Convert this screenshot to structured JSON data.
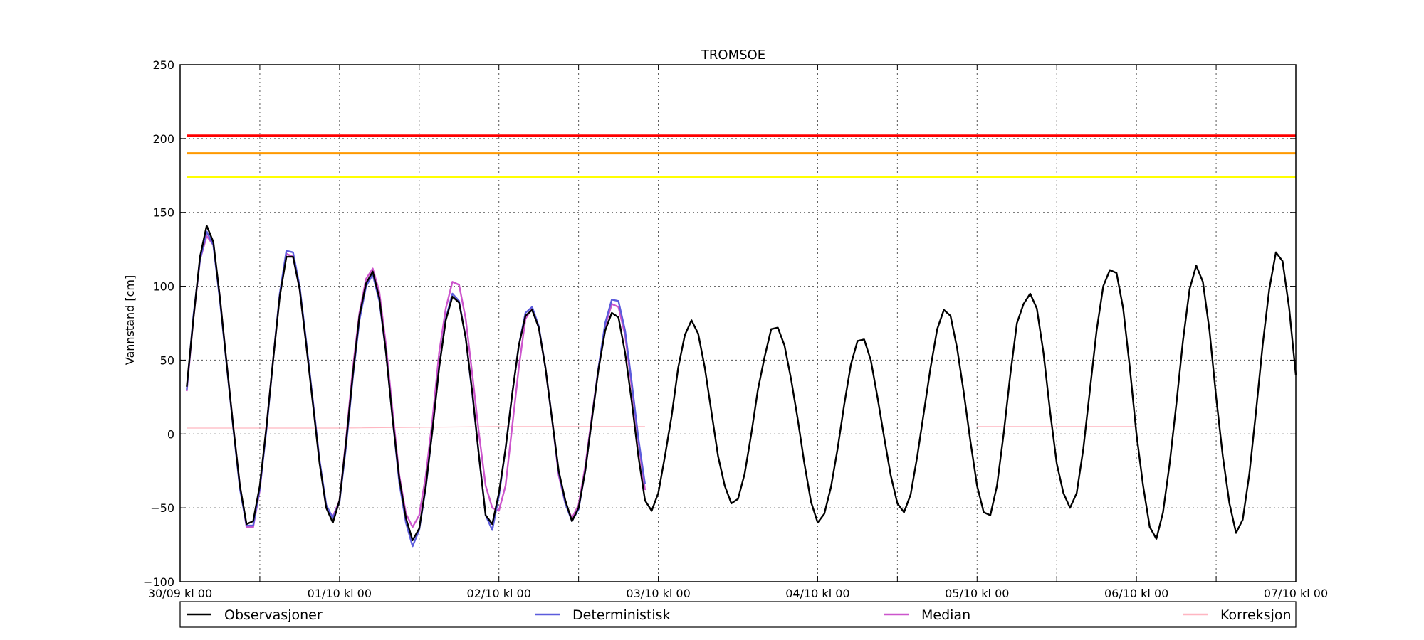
{
  "chart_data": {
    "type": "line",
    "title": "TROMSOE",
    "xlabel": "",
    "ylabel": "Vannstand [cm]",
    "ylim": [
      -100,
      250
    ],
    "yticks": [
      -100,
      -50,
      0,
      50,
      100,
      150,
      200,
      250
    ],
    "ytick_labels": [
      "−100",
      "−50",
      "0",
      "50",
      "100",
      "150",
      "200",
      "250"
    ],
    "xlim_hours": [
      0,
      168
    ],
    "xticks_hours": [
      0,
      24,
      48,
      72,
      96,
      120,
      144,
      168
    ],
    "xtick_labels": [
      "30/09 kl 00",
      "01/10 kl 00",
      "02/10 kl 00",
      "03/10 kl 00",
      "04/10 kl 00",
      "05/10 kl 00",
      "06/10 kl 00",
      "07/10 kl 00"
    ],
    "minor_xticks_hours": [
      12,
      36,
      60,
      84,
      108,
      132,
      156
    ],
    "grid": true,
    "legend_placement": "below",
    "thresholds": [
      {
        "value": 202,
        "color": "#ff0000"
      },
      {
        "value": 190,
        "color": "#ff9900"
      },
      {
        "value": 174,
        "color": "#ffff00"
      }
    ],
    "series": [
      {
        "name": "Observasjoner",
        "color": "#000000",
        "points": [
          [
            1,
            32
          ],
          [
            2,
            78
          ],
          [
            3,
            120
          ],
          [
            4,
            141
          ],
          [
            5,
            130
          ],
          [
            6,
            92
          ],
          [
            7,
            48
          ],
          [
            8,
            5
          ],
          [
            9,
            -35
          ],
          [
            10,
            -61
          ],
          [
            11,
            -59
          ],
          [
            12,
            -35
          ],
          [
            13,
            5
          ],
          [
            14,
            50
          ],
          [
            15,
            93
          ],
          [
            16,
            120
          ],
          [
            17,
            120
          ],
          [
            18,
            98
          ],
          [
            19,
            60
          ],
          [
            20,
            20
          ],
          [
            21,
            -20
          ],
          [
            22,
            -50
          ],
          [
            23,
            -60
          ],
          [
            24,
            -45
          ],
          [
            25,
            -5
          ],
          [
            26,
            40
          ],
          [
            27,
            80
          ],
          [
            28,
            102
          ],
          [
            29,
            110
          ],
          [
            30,
            92
          ],
          [
            31,
            55
          ],
          [
            32,
            10
          ],
          [
            33,
            -30
          ],
          [
            34,
            -57
          ],
          [
            35,
            -72
          ],
          [
            36,
            -64
          ],
          [
            37,
            -35
          ],
          [
            38,
            3
          ],
          [
            39,
            45
          ],
          [
            40,
            77
          ],
          [
            41,
            93
          ],
          [
            42,
            89
          ],
          [
            43,
            65
          ],
          [
            44,
            28
          ],
          [
            45,
            -15
          ],
          [
            46,
            -55
          ],
          [
            47,
            -61
          ],
          [
            48,
            -40
          ],
          [
            49,
            -10
          ],
          [
            50,
            27
          ],
          [
            51,
            60
          ],
          [
            52,
            80
          ],
          [
            53,
            84
          ],
          [
            54,
            72
          ],
          [
            55,
            45
          ],
          [
            56,
            10
          ],
          [
            57,
            -25
          ],
          [
            58,
            -45
          ],
          [
            59,
            -59
          ],
          [
            60,
            -50
          ],
          [
            61,
            -25
          ],
          [
            62,
            10
          ],
          [
            63,
            44
          ],
          [
            64,
            70
          ],
          [
            65,
            82
          ],
          [
            66,
            79
          ],
          [
            67,
            55
          ],
          [
            68,
            22
          ],
          [
            69,
            -15
          ],
          [
            70,
            -45
          ],
          [
            71,
            -52
          ],
          [
            72,
            -40
          ],
          [
            73,
            -15
          ],
          [
            74,
            12
          ],
          [
            75,
            45
          ],
          [
            76,
            67
          ],
          [
            77,
            77
          ],
          [
            78,
            68
          ],
          [
            79,
            45
          ],
          [
            80,
            15
          ],
          [
            81,
            -15
          ],
          [
            82,
            -35
          ],
          [
            83,
            -47
          ],
          [
            84,
            -44
          ],
          [
            85,
            -27
          ],
          [
            86,
            0
          ],
          [
            87,
            30
          ],
          [
            88,
            52
          ],
          [
            89,
            71
          ],
          [
            90,
            72
          ],
          [
            91,
            60
          ],
          [
            92,
            37
          ],
          [
            93,
            10
          ],
          [
            94,
            -20
          ],
          [
            95,
            -46
          ],
          [
            96,
            -60
          ],
          [
            97,
            -54
          ],
          [
            98,
            -36
          ],
          [
            99,
            -10
          ],
          [
            100,
            20
          ],
          [
            101,
            47
          ],
          [
            102,
            63
          ],
          [
            103,
            64
          ],
          [
            104,
            50
          ],
          [
            105,
            25
          ],
          [
            106,
            -2
          ],
          [
            107,
            -28
          ],
          [
            108,
            -47
          ],
          [
            109,
            -53
          ],
          [
            110,
            -41
          ],
          [
            111,
            -15
          ],
          [
            112,
            15
          ],
          [
            113,
            45
          ],
          [
            114,
            71
          ],
          [
            115,
            84
          ],
          [
            116,
            80
          ],
          [
            117,
            58
          ],
          [
            118,
            28
          ],
          [
            119,
            -5
          ],
          [
            120,
            -35
          ],
          [
            121,
            -53
          ],
          [
            122,
            -55
          ],
          [
            123,
            -35
          ],
          [
            124,
            0
          ],
          [
            125,
            40
          ],
          [
            126,
            75
          ],
          [
            127,
            88
          ],
          [
            128,
            95
          ],
          [
            129,
            85
          ],
          [
            130,
            55
          ],
          [
            131,
            15
          ],
          [
            132,
            -20
          ],
          [
            133,
            -40
          ],
          [
            134,
            -50
          ],
          [
            135,
            -40
          ],
          [
            136,
            -10
          ],
          [
            137,
            30
          ],
          [
            138,
            70
          ],
          [
            139,
            100
          ],
          [
            140,
            111
          ],
          [
            141,
            109
          ],
          [
            142,
            85
          ],
          [
            143,
            45
          ],
          [
            144,
            0
          ],
          [
            145,
            -35
          ],
          [
            146,
            -63
          ],
          [
            147,
            -71
          ],
          [
            148,
            -53
          ],
          [
            149,
            -20
          ],
          [
            150,
            20
          ],
          [
            151,
            63
          ],
          [
            152,
            98
          ],
          [
            153,
            114
          ],
          [
            154,
            103
          ],
          [
            155,
            70
          ],
          [
            156,
            25
          ],
          [
            157,
            -15
          ],
          [
            158,
            -47
          ],
          [
            159,
            -67
          ],
          [
            160,
            -58
          ],
          [
            161,
            -27
          ],
          [
            162,
            15
          ],
          [
            163,
            60
          ],
          [
            164,
            98
          ],
          [
            165,
            123
          ],
          [
            166,
            117
          ],
          [
            167,
            85
          ],
          [
            168,
            40
          ]
        ]
      },
      {
        "name": "Deterministisk",
        "color": "#5c5cdc",
        "points": [
          [
            1,
            30
          ],
          [
            2,
            80
          ],
          [
            3,
            118
          ],
          [
            4,
            137
          ],
          [
            5,
            128
          ],
          [
            6,
            90
          ],
          [
            7,
            47
          ],
          [
            8,
            4
          ],
          [
            9,
            -37
          ],
          [
            10,
            -62
          ],
          [
            11,
            -62
          ],
          [
            12,
            -37
          ],
          [
            13,
            3
          ],
          [
            14,
            50
          ],
          [
            15,
            95
          ],
          [
            16,
            124
          ],
          [
            17,
            123
          ],
          [
            18,
            100
          ],
          [
            19,
            62
          ],
          [
            20,
            22
          ],
          [
            21,
            -18
          ],
          [
            22,
            -48
          ],
          [
            23,
            -57
          ],
          [
            24,
            -46
          ],
          [
            25,
            -8
          ],
          [
            26,
            38
          ],
          [
            27,
            77
          ],
          [
            28,
            100
          ],
          [
            29,
            108
          ],
          [
            30,
            90
          ],
          [
            31,
            55
          ],
          [
            32,
            10
          ],
          [
            33,
            -33
          ],
          [
            34,
            -60
          ],
          [
            35,
            -76
          ],
          [
            36,
            -65
          ],
          [
            37,
            -36
          ],
          [
            38,
            3
          ],
          [
            39,
            45
          ],
          [
            40,
            78
          ],
          [
            41,
            95
          ],
          [
            42,
            90
          ],
          [
            43,
            65
          ],
          [
            44,
            27
          ],
          [
            45,
            -15
          ],
          [
            46,
            -55
          ],
          [
            47,
            -65
          ],
          [
            48,
            -42
          ],
          [
            49,
            -10
          ],
          [
            50,
            27
          ],
          [
            51,
            60
          ],
          [
            52,
            82
          ],
          [
            53,
            86
          ],
          [
            54,
            73
          ],
          [
            55,
            45
          ],
          [
            56,
            10
          ],
          [
            57,
            -26
          ],
          [
            58,
            -47
          ],
          [
            59,
            -59
          ],
          [
            60,
            -51
          ],
          [
            61,
            -25
          ],
          [
            62,
            10
          ],
          [
            63,
            45
          ],
          [
            64,
            75
          ],
          [
            65,
            91
          ],
          [
            66,
            90
          ],
          [
            67,
            70
          ],
          [
            68,
            35
          ],
          [
            69,
            -3
          ],
          [
            70,
            -34
          ]
        ]
      },
      {
        "name": "Median",
        "color": "#cc55cc",
        "points": [
          [
            1,
            29
          ],
          [
            2,
            78
          ],
          [
            3,
            118
          ],
          [
            4,
            134
          ],
          [
            5,
            128
          ],
          [
            6,
            92
          ],
          [
            7,
            48
          ],
          [
            8,
            5
          ],
          [
            9,
            -35
          ],
          [
            10,
            -63
          ],
          [
            11,
            -63
          ],
          [
            12,
            -38
          ],
          [
            13,
            5
          ],
          [
            14,
            50
          ],
          [
            15,
            94
          ],
          [
            16,
            122
          ],
          [
            17,
            120
          ],
          [
            18,
            98
          ],
          [
            19,
            60
          ],
          [
            20,
            22
          ],
          [
            21,
            -18
          ],
          [
            22,
            -50
          ],
          [
            23,
            -56
          ],
          [
            24,
            -45
          ],
          [
            25,
            -3
          ],
          [
            26,
            44
          ],
          [
            27,
            82
          ],
          [
            28,
            105
          ],
          [
            29,
            112
          ],
          [
            30,
            96
          ],
          [
            31,
            60
          ],
          [
            32,
            15
          ],
          [
            33,
            -28
          ],
          [
            34,
            -54
          ],
          [
            35,
            -63
          ],
          [
            36,
            -55
          ],
          [
            37,
            -28
          ],
          [
            38,
            10
          ],
          [
            39,
            55
          ],
          [
            40,
            85
          ],
          [
            41,
            103
          ],
          [
            42,
            101
          ],
          [
            43,
            78
          ],
          [
            44,
            40
          ],
          [
            45,
            0
          ],
          [
            46,
            -35
          ],
          [
            47,
            -50
          ],
          [
            48,
            -52
          ],
          [
            49,
            -35
          ],
          [
            50,
            5
          ],
          [
            51,
            45
          ],
          [
            52,
            78
          ],
          [
            53,
            85
          ],
          [
            54,
            72
          ],
          [
            55,
            45
          ],
          [
            56,
            10
          ],
          [
            57,
            -28
          ],
          [
            58,
            -47
          ],
          [
            59,
            -57
          ],
          [
            60,
            -48
          ],
          [
            61,
            -22
          ],
          [
            62,
            12
          ],
          [
            63,
            45
          ],
          [
            64,
            73
          ],
          [
            65,
            88
          ],
          [
            66,
            86
          ],
          [
            67,
            67
          ],
          [
            68,
            32
          ],
          [
            69,
            -5
          ],
          [
            70,
            -38
          ]
        ]
      },
      {
        "name": "Korreksjon",
        "color": "#ffb6c1",
        "points": [
          [
            1,
            4
          ],
          [
            24,
            4
          ],
          [
            48,
            5
          ],
          [
            70,
            5
          ]
        ]
      },
      {
        "name": "Korreksjon",
        "color": "#ffb6c1",
        "points": [
          [
            120,
            5
          ],
          [
            144,
            5
          ]
        ]
      }
    ],
    "legend": [
      {
        "label": "Observasjoner",
        "color": "#000000"
      },
      {
        "label": "Deterministisk",
        "color": "#5c5cdc"
      },
      {
        "label": "Median",
        "color": "#cc55cc"
      },
      {
        "label": "Korreksjon",
        "color": "#ffb6c1"
      }
    ]
  }
}
